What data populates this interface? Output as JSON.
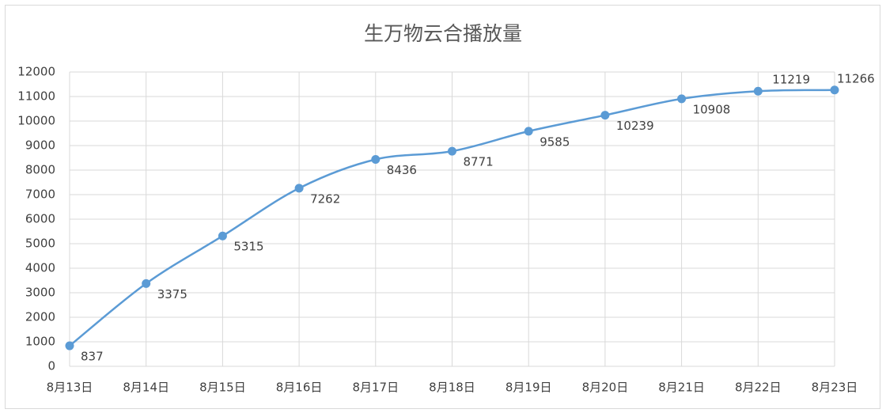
{
  "chart_data": {
    "type": "line",
    "title": "生万物云合播放量",
    "categories": [
      "8月13日",
      "8月14日",
      "8月15日",
      "8月16日",
      "8月17日",
      "8月18日",
      "8月19日",
      "8月20日",
      "8月21日",
      "8月22日",
      "8月23日"
    ],
    "values": [
      837,
      3375,
      5315,
      7262,
      8436,
      8771,
      9585,
      10239,
      10908,
      11219,
      11266
    ],
    "color": "#5b9bd5",
    "ylim": [
      0,
      12000
    ],
    "yticks": [
      0,
      1000,
      2000,
      3000,
      4000,
      5000,
      6000,
      7000,
      8000,
      9000,
      10000,
      11000,
      12000
    ],
    "grid": true
  }
}
